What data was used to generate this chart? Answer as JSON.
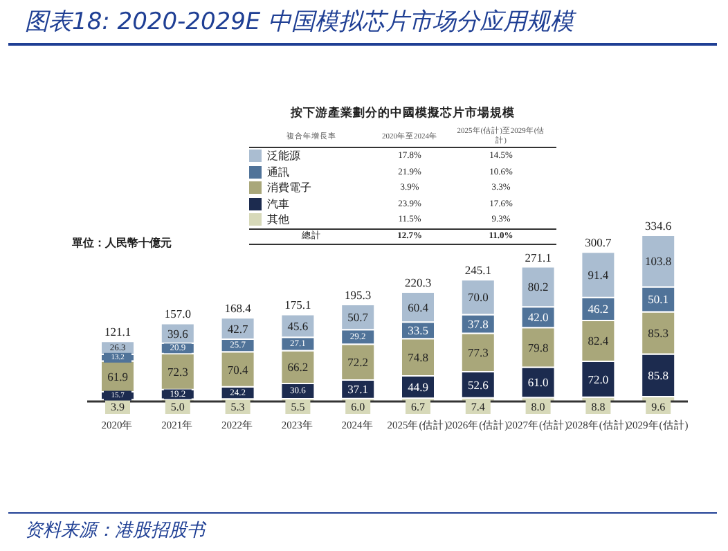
{
  "chart_data": {
    "type": "bar",
    "title": "图表18:  2020-2029E 中国模拟芯片市场分应用规模",
    "categories": [
      "2020年",
      "2021年",
      "2022年",
      "2023年",
      "2024年",
      "2025年(估計)",
      "2026年(估計)",
      "2027年(估計)",
      "2028年(估計)",
      "2029年(估計)"
    ],
    "stacked": true,
    "legend": "top",
    "series": [
      {
        "name": "其他",
        "color": "#d7d9b9",
        "values": [
          3.9,
          5.0,
          5.3,
          5.5,
          6.0,
          6.7,
          7.4,
          8.0,
          8.8,
          9.6
        ],
        "value_labels": [
          "3.9",
          "5.0",
          "5.3",
          "5.5",
          "6.0",
          "6.7",
          "7.4",
          "8.0",
          "8.8",
          "9.6"
        ]
      },
      {
        "name": "汽車",
        "color": "#1c2b4f",
        "values": [
          15.7,
          19.2,
          24.2,
          30.6,
          37.1,
          44.9,
          52.6,
          61.0,
          72.0,
          85.8
        ],
        "value_labels": [
          "15.7",
          "19.2",
          "24.2",
          "30.6",
          "37.1",
          "44.9",
          "52.6",
          "61.0",
          "72.0",
          "85.8"
        ]
      },
      {
        "name": "消費電子",
        "color": "#a9a77a",
        "values": [
          61.9,
          72.3,
          70.4,
          66.2,
          72.2,
          74.8,
          77.3,
          79.8,
          82.4,
          85.3
        ],
        "value_labels": [
          "61.9",
          "72.3",
          "70.4",
          "66.2",
          "72.2",
          "74.8",
          "77.3",
          "79.8",
          "82.4",
          "85.3"
        ]
      },
      {
        "name": "通訊",
        "color": "#507399",
        "values": [
          13.2,
          20.9,
          25.7,
          27.1,
          29.2,
          33.5,
          37.8,
          42.0,
          46.2,
          50.1
        ],
        "value_labels": [
          "13.2",
          "20.9",
          "25.7",
          "27.1",
          "29.2",
          "33.5",
          "37.8",
          "42.0",
          "46.2",
          "50.1"
        ]
      },
      {
        "name": "泛能源",
        "color": "#aabdd1",
        "values": [
          26.3,
          39.6,
          42.7,
          45.6,
          50.7,
          60.4,
          70.0,
          80.2,
          91.4,
          103.8
        ],
        "value_labels": [
          "26.3",
          "39.6",
          "42.7",
          "45.6",
          "50.7",
          "60.4",
          "70.0",
          "80.2",
          "91.4",
          "103.8"
        ]
      }
    ],
    "totals": [
      "121.1",
      "157.0",
      "168.4",
      "175.1",
      "195.3",
      "220.3",
      "245.1",
      "271.1",
      "300.7",
      "334.6"
    ],
    "annotations": [
      "單位：人民幣十億元",
      "资料来源：港股招股书",
      "按下游產業劃分的中國模擬芯片市場規模",
      "複合年增長率",
      "2020年至2024年",
      "2025年(估計)至2029年(估計)",
      "17.8%",
      "14.5%",
      "21.9%",
      "10.6%",
      "3.9%",
      "3.3%",
      "23.9%",
      "17.6%",
      "11.5%",
      "9.3%",
      "總計",
      "12.7%",
      "11.0%"
    ]
  }
}
